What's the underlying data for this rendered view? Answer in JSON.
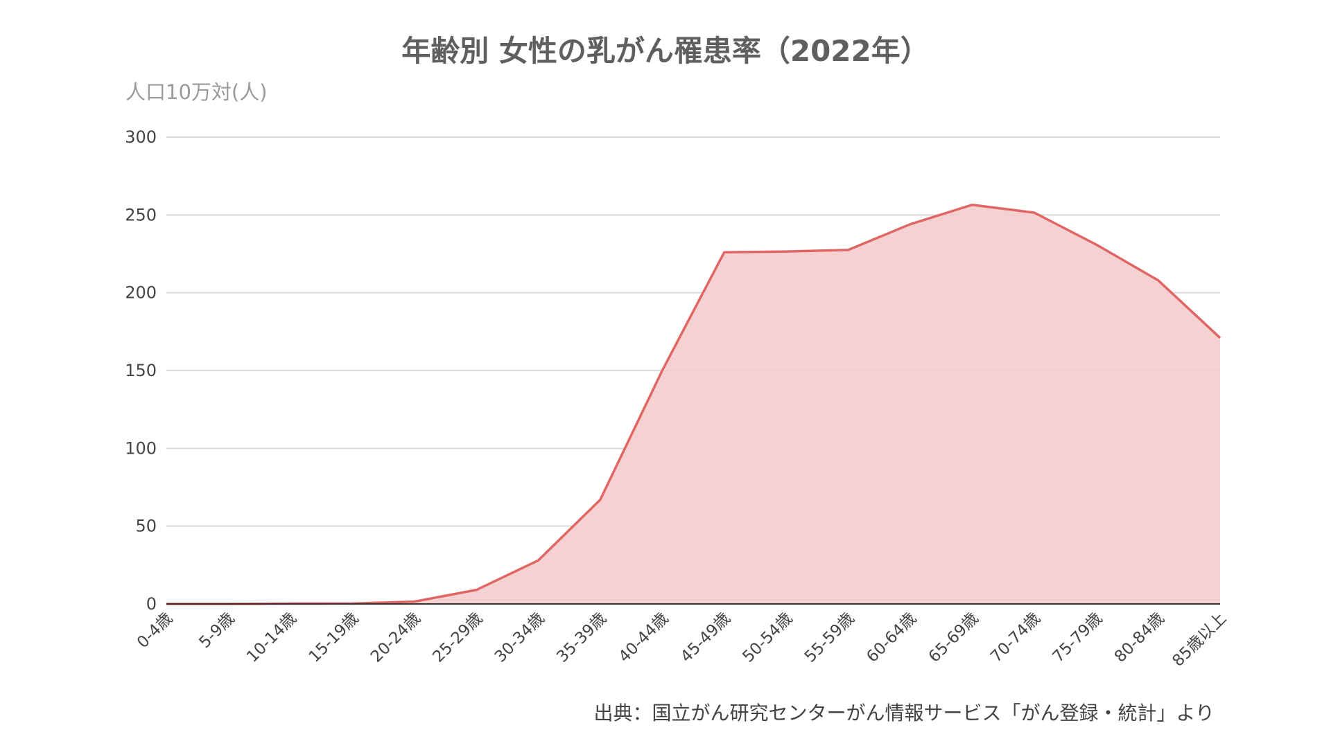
{
  "chart_data": {
    "type": "area",
    "title": "年齢別 女性の乳がん罹患率（2022年）",
    "unit_label": "人口10万対(人)",
    "source": "出典：国立がん研究センターがん情報サービス「がん登録・統計」より",
    "categories": [
      "0-4歳",
      "5-9歳",
      "10-14歳",
      "15-19歳",
      "20-24歳",
      "25-29歳",
      "30-34歳",
      "35-39歳",
      "40-44歳",
      "45-49歳",
      "50-54歳",
      "55-59歳",
      "60-64歳",
      "65-69歳",
      "70-74歳",
      "75-79歳",
      "80-84歳",
      "85歳以上"
    ],
    "values": [
      0,
      0,
      0.2,
      0.3,
      1.5,
      9,
      28,
      67,
      150,
      226,
      226.5,
      227.5,
      244,
      256.5,
      251.5,
      231,
      208,
      171
    ],
    "ylim": [
      0,
      300
    ],
    "yticks": [
      0,
      50,
      100,
      150,
      200,
      250,
      300
    ],
    "grid": true,
    "colors": {
      "line": "#e06666",
      "fill": "#f4cccc",
      "grid": "#d9d9d9",
      "axis": "#333333"
    }
  }
}
